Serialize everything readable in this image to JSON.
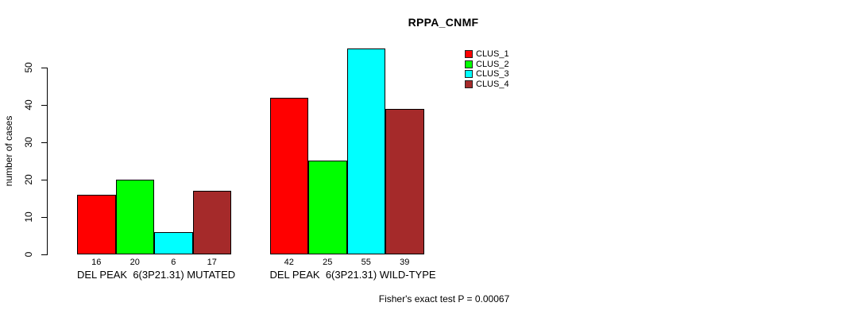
{
  "chart_data": {
    "type": "bar",
    "title": "RPPA_CNMF",
    "xlabel": "",
    "ylabel": "number of cases",
    "categories": [
      "DEL PEAK  6(3P21.31) MUTATED",
      "DEL PEAK  6(3P21.31) WILD-TYPE"
    ],
    "series": [
      {
        "name": "CLUS_1",
        "color": "#FF0000",
        "values": [
          16,
          42
        ]
      },
      {
        "name": "CLUS_2",
        "color": "#00FF00",
        "values": [
          20,
          25
        ]
      },
      {
        "name": "CLUS_3",
        "color": "#00FFFF",
        "values": [
          6,
          55
        ]
      },
      {
        "name": "CLUS_4",
        "color": "#A52A2A",
        "values": [
          17,
          39
        ]
      }
    ],
    "yticks": [
      0,
      10,
      20,
      30,
      40,
      50
    ],
    "ylim": [
      0,
      57
    ],
    "grid": false,
    "bar_value_labels": true,
    "legend_position": "top-right",
    "legend_entries": [
      "CLUS_1",
      "CLUS_2",
      "CLUS_3",
      "CLUS_4"
    ],
    "annotation": "Fisher's exact test P = 0.00067",
    "background_color": "#FFFFFF",
    "axis_color": "#000000",
    "bar_border_color": "#000000"
  }
}
